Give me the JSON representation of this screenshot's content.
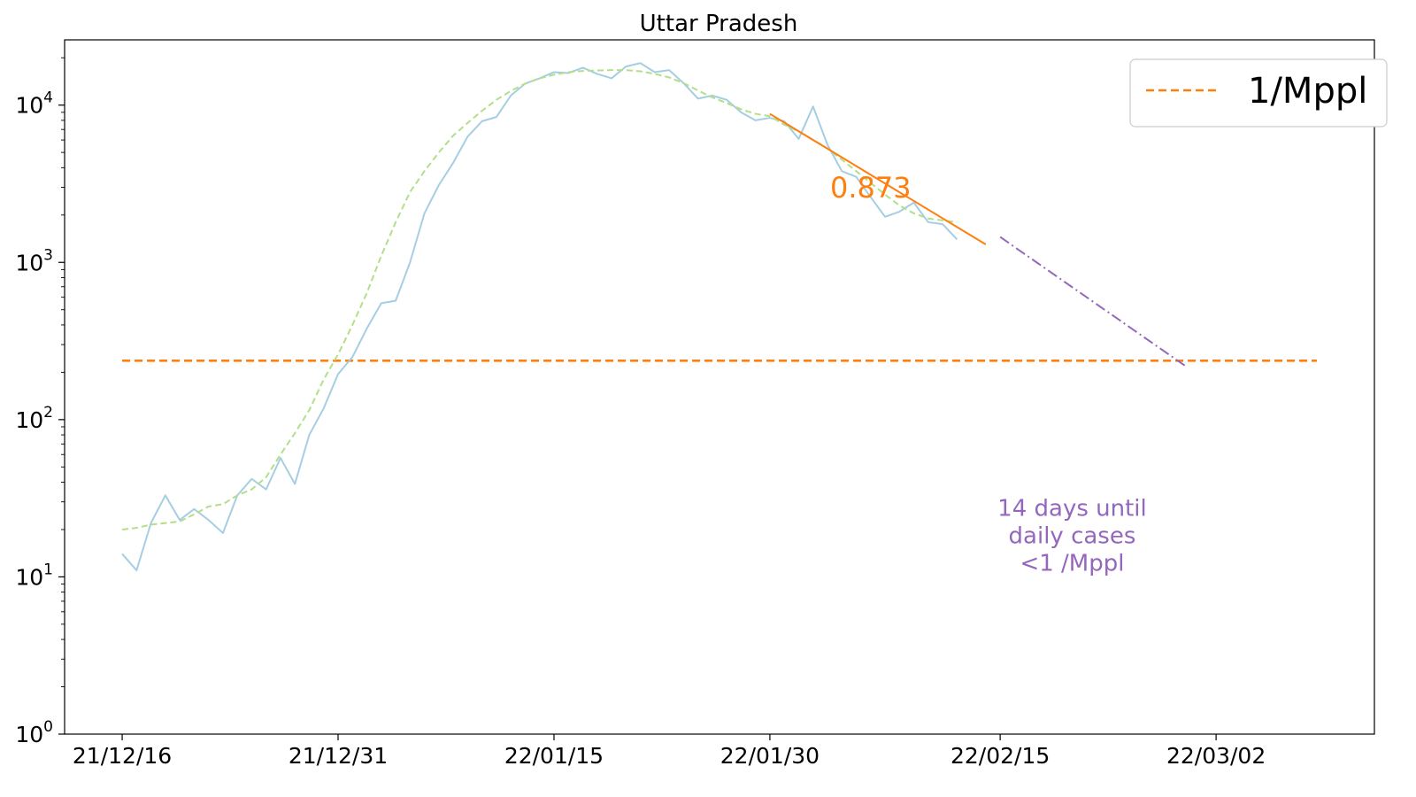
{
  "chart_data": {
    "type": "line",
    "title": "Uttar Pradesh",
    "xlabel": "",
    "ylabel": "",
    "yscale": "log",
    "ylim": [
      1,
      26000
    ],
    "xlim": [
      "2021-12-12",
      "2022-03-13"
    ],
    "x_ticks": [
      "21/12/16",
      "21/12/31",
      "22/01/15",
      "22/01/30",
      "22/02/15",
      "22/03/02"
    ],
    "x_tick_dates": [
      "2021-12-16",
      "2021-12-31",
      "2022-01-15",
      "2022-01-30",
      "2022-02-15",
      "2022-03-02"
    ],
    "y_ticks": [
      {
        "base": "10",
        "exp": "0",
        "value": 1
      },
      {
        "base": "10",
        "exp": "1",
        "value": 10
      },
      {
        "base": "10",
        "exp": "2",
        "value": 100
      },
      {
        "base": "10",
        "exp": "3",
        "value": 1000
      },
      {
        "base": "10",
        "exp": "4",
        "value": 10000
      }
    ],
    "grid": false,
    "legend_position": "top-right",
    "legend": [
      {
        "label": "1/Mppl",
        "color": "#ff7f0e",
        "style": "dashed"
      }
    ],
    "start_date": "2021-12-16",
    "series": [
      {
        "key": "daily",
        "color": "#a6cee3",
        "style": "solid",
        "values": [
          14,
          11,
          22,
          33,
          23,
          27,
          23,
          19,
          33,
          42,
          36,
          57,
          39,
          80,
          118,
          195,
          250,
          380,
          550,
          570,
          1000,
          2050,
          3100,
          4300,
          6300,
          7900,
          8400,
          11500,
          13700,
          14800,
          16200,
          16000,
          17300,
          15800,
          14800,
          17600,
          18500,
          16200,
          16700,
          13800,
          11000,
          11500,
          10800,
          9000,
          8000,
          8300,
          7900,
          6100,
          9800,
          5600,
          3800,
          3500,
          2600,
          1950,
          2100,
          2400,
          1800,
          1750,
          1400
        ]
      },
      {
        "key": "smoothed",
        "color": "#b2df8a",
        "style": "dashed",
        "values": [
          20,
          20.5,
          21.5,
          22,
          22.5,
          25,
          28,
          29,
          33,
          36,
          43,
          60,
          82,
          115,
          180,
          260,
          400,
          640,
          1100,
          1800,
          2800,
          3800,
          5000,
          6400,
          7700,
          9200,
          10800,
          12300,
          13700,
          14800,
          15600,
          16200,
          16500,
          16600,
          16700,
          16700,
          16400,
          15800,
          15000,
          13800,
          12400,
          11200,
          10300,
          9400,
          8800,
          8500,
          7500,
          6800,
          6000,
          5300,
          4500,
          3800,
          3200,
          2700,
          2300,
          2050,
          1900,
          1850,
          1800
        ]
      }
    ],
    "threshold": {
      "label": "1/Mppl",
      "value": 237,
      "from": "2021-12-16",
      "to": "2022-03-09",
      "color": "#ff7f0e"
    },
    "fit_line": {
      "from": "2022-01-30",
      "to": "2022-02-14",
      "y_from": 8800,
      "y_to": 1300,
      "color": "#ff7f0e"
    },
    "projection": {
      "from": "2022-02-15",
      "to": "2022-02-28",
      "y_from": 1450,
      "y_to": 215,
      "color": "#9467bd"
    },
    "slope_annotation": {
      "text": "0.873",
      "x": "2022-02-06",
      "y": 2900,
      "color": "#ff7f0e"
    },
    "note": {
      "lines": [
        "14 days until",
        "daily cases",
        "<1 /Mppl"
      ],
      "x": "2022-02-20",
      "y": 18,
      "color": "#9467bd"
    }
  }
}
